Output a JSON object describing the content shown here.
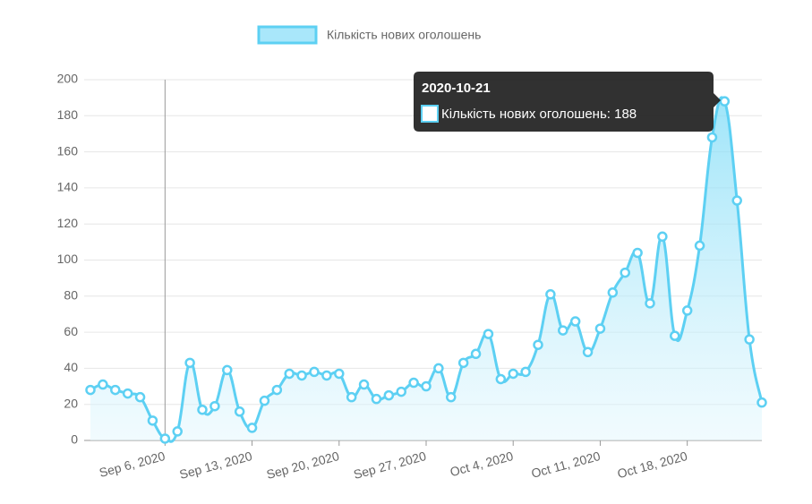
{
  "chart_data": {
    "type": "line",
    "x": [
      "2020-08-31",
      "2020-09-01",
      "2020-09-02",
      "2020-09-03",
      "2020-09-04",
      "2020-09-05",
      "2020-09-06",
      "2020-09-07",
      "2020-09-08",
      "2020-09-09",
      "2020-09-10",
      "2020-09-11",
      "2020-09-12",
      "2020-09-13",
      "2020-09-14",
      "2020-09-15",
      "2020-09-16",
      "2020-09-17",
      "2020-09-18",
      "2020-09-19",
      "2020-09-20",
      "2020-09-21",
      "2020-09-22",
      "2020-09-23",
      "2020-09-24",
      "2020-09-25",
      "2020-09-26",
      "2020-09-27",
      "2020-09-28",
      "2020-09-29",
      "2020-09-30",
      "2020-10-01",
      "2020-10-02",
      "2020-10-03",
      "2020-10-04",
      "2020-10-05",
      "2020-10-06",
      "2020-10-07",
      "2020-10-08",
      "2020-10-09",
      "2020-10-10",
      "2020-10-11",
      "2020-10-12",
      "2020-10-13",
      "2020-10-14",
      "2020-10-15",
      "2020-10-16",
      "2020-10-17",
      "2020-10-18",
      "2020-10-19",
      "2020-10-20",
      "2020-10-21",
      "2020-10-22",
      "2020-10-23",
      "2020-10-24"
    ],
    "series": [
      {
        "name": "Кількість нових оголошень",
        "color": "#5dd0f3",
        "values": [
          28,
          31,
          28,
          26,
          24,
          11,
          1,
          5,
          43,
          17,
          19,
          39,
          16,
          7,
          22,
          28,
          37,
          36,
          38,
          36,
          37,
          24,
          31,
          23,
          25,
          27,
          32,
          30,
          40,
          24,
          43,
          48,
          59,
          34,
          37,
          38,
          53,
          81,
          61,
          66,
          49,
          62,
          82,
          93,
          104,
          76,
          113,
          58,
          72,
          108,
          168,
          188,
          133,
          56,
          21
        ]
      }
    ],
    "xlim": [
      "2020-08-31",
      "2020-10-24"
    ],
    "xticks": [
      {
        "value": "2020-09-06",
        "label": "Sep 6, 2020"
      },
      {
        "value": "2020-09-13",
        "label": "Sep 13, 2020"
      },
      {
        "value": "2020-09-20",
        "label": "Sep 20, 2020"
      },
      {
        "value": "2020-09-27",
        "label": "Sep 27, 2020"
      },
      {
        "value": "2020-10-04",
        "label": "Oct 4, 2020"
      },
      {
        "value": "2020-10-11",
        "label": "Oct 11, 2020"
      },
      {
        "value": "2020-10-18",
        "label": "Oct 18, 2020"
      }
    ],
    "ylim": [
      0,
      200
    ],
    "yticks": [
      0,
      20,
      40,
      60,
      80,
      100,
      120,
      140,
      160,
      180,
      200
    ],
    "grid": true,
    "legend": "top",
    "tooltip": {
      "title": "2020-10-21",
      "label": "Кількість нових оголошень: 188"
    }
  }
}
